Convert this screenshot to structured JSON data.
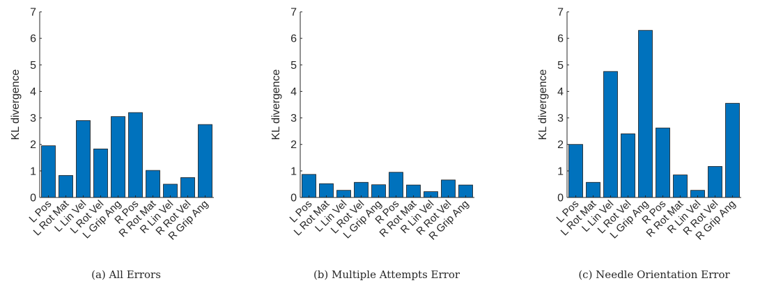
{
  "chart_data": [
    {
      "type": "bar",
      "caption": "(a) All Errors",
      "ylabel": "KL divergence",
      "ylim": [
        0,
        7
      ],
      "yticks": [
        "0",
        "1",
        "2",
        "3",
        "4",
        "5",
        "6",
        "7"
      ],
      "categories": [
        "L Pos",
        "L Rot Mat",
        "L Lin Vel",
        "L Rot Vel",
        "L Grip Ang",
        "R Pos",
        "R Rot Mat",
        "R Lin Vel",
        "R Rot Vel",
        "R Grip Ang"
      ],
      "values": [
        1.95,
        0.83,
        2.9,
        1.83,
        3.05,
        3.2,
        1.02,
        0.5,
        0.75,
        2.75
      ],
      "bar_color": "#0072BD",
      "grid": false
    },
    {
      "type": "bar",
      "caption": "(b) Multiple Attempts Error",
      "ylabel": "KL divergence",
      "ylim": [
        0,
        7
      ],
      "yticks": [
        "0",
        "1",
        "2",
        "3",
        "4",
        "5",
        "6",
        "7"
      ],
      "categories": [
        "L Pos",
        "L Rot Mat",
        "L Lin Vel",
        "L Rot Vel",
        "L Grip Ang",
        "R Pos",
        "R Rot Mat",
        "R Lin Vel",
        "R Rot Vel",
        "R Grip Ang"
      ],
      "values": [
        0.87,
        0.52,
        0.27,
        0.57,
        0.48,
        0.95,
        0.47,
        0.22,
        0.66,
        0.47
      ],
      "bar_color": "#0072BD",
      "grid": false
    },
    {
      "type": "bar",
      "caption": "(c) Needle Orientation Error",
      "ylabel": "KL divergence",
      "ylim": [
        0,
        7
      ],
      "yticks": [
        "0",
        "1",
        "2",
        "3",
        "4",
        "5",
        "6",
        "7"
      ],
      "categories": [
        "L Pos",
        "L Rot Mat",
        "L Lin Vel",
        "L Rot Vel",
        "L Grip Ang",
        "R Pos",
        "R Rot Mat",
        "R Lin Vel",
        "R Rot Vel",
        "R Grip Ang"
      ],
      "values": [
        2.0,
        0.57,
        4.75,
        2.4,
        6.3,
        2.62,
        0.85,
        0.27,
        1.17,
        3.55
      ],
      "bar_color": "#0072BD",
      "grid": false
    }
  ]
}
